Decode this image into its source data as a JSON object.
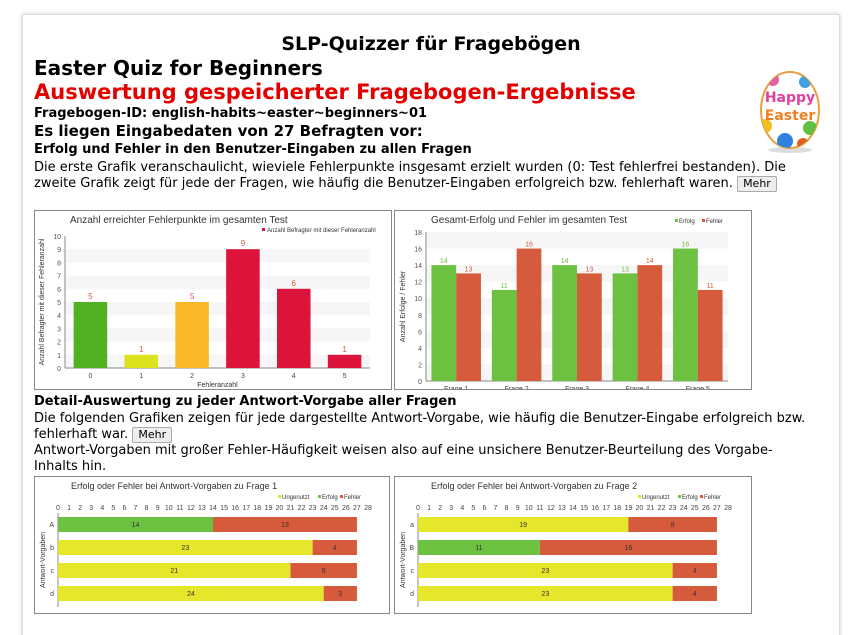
{
  "app_title": "SLP-Quizzer für Fragebögen",
  "quiz_title": "Easter Quiz for Beginners",
  "eval_title": "Auswertung gespeicherter Fragebogen-Ergebnisse",
  "questionnaire_id": "Fragebogen-ID: english-habits~easter~beginners~01",
  "respondents": "Es liegen Eingabedaten von 27 Befragten vor:",
  "section1": {
    "heading": "Erfolg und Fehler in den Benutzer-Eingaben zu allen Fragen",
    "text": "Die erste Grafik veranschaulicht, wieviele Fehlerpunkte insgesamt erzielt wurden (0: Test fehlerfrei bestanden). Die zweite Grafik zeigt für jede der Fragen, wie häufig die Benutzer-Eingaben erfolgreich bzw. fehlerhaft waren.",
    "more": "Mehr"
  },
  "section2": {
    "heading": "Detail-Auswertung zu jeder Antwort-Vorgabe aller Fragen",
    "text1": "Die folgenden Grafiken zeigen für jede dargestellte Antwort-Vorgabe, wie häufig die Benutzer-Eingabe erfolgreich bzw. fehlerhaft war.",
    "more": "Mehr",
    "text2": "Antwort-Vorgaben mit großer Fehler-Häufigkeit weisen also auf eine unsichere Benutzer-Beurteilung des Vorgabe-Inhalts hin."
  },
  "egg_image": {
    "text": "Happy Easter"
  },
  "colors": {
    "erfolg": "#6cc140",
    "fehler": "#d65a3c",
    "ungenutzt": "#e6e62a",
    "red": "#dc143c",
    "orange": "#fbb829",
    "lime": "#dde21e",
    "green": "#52b120"
  },
  "chart_data": [
    {
      "type": "bar",
      "title": "Anzahl erreichter Fehlerpunkte im gesamten Test",
      "xlabel": "Fehleranzahl",
      "ylabel": "Anzahl Befragter mit dieser Fehleranzahl",
      "legend": "Anzahl Befragter mit dieser Fehleranzahl",
      "legend_position": "top-right",
      "categories": [
        "0",
        "1",
        "2",
        "3",
        "4",
        "5"
      ],
      "values": [
        5,
        1,
        5,
        9,
        6,
        1
      ],
      "bar_colors": [
        "#52b120",
        "#dde21e",
        "#fbb829",
        "#dc143c",
        "#dc143c",
        "#dc143c"
      ],
      "ylim": [
        0,
        10
      ],
      "yticks": [
        0,
        1,
        2,
        3,
        4,
        5,
        6,
        7,
        8,
        9,
        10
      ]
    },
    {
      "type": "bar",
      "title": "Gesamt-Erfolg und Fehler im gesamten Test",
      "ylabel": "Anzahl Erfolge / Fehler",
      "legend_position": "top-right",
      "categories": [
        "Frage 1",
        "Frage 2",
        "Frage 3",
        "Frage 4",
        "Frage 5"
      ],
      "series": [
        {
          "name": "Erfolg",
          "values": [
            14,
            11,
            14,
            13,
            16
          ],
          "color": "#6cc140"
        },
        {
          "name": "Fehler",
          "values": [
            13,
            16,
            13,
            14,
            11
          ],
          "color": "#d65a3c"
        }
      ],
      "ylim": [
        0,
        18
      ],
      "yticks": [
        0,
        2,
        4,
        6,
        8,
        10,
        12,
        14,
        16,
        18
      ]
    },
    {
      "type": "bar",
      "orientation": "horizontal",
      "stacked": true,
      "title": "Erfolg oder Fehler bei Antwort-Vorgaben zu Frage 1",
      "ylabel": "Antwort-Vorgaben",
      "legend_position": "top-right",
      "legend": [
        "Ungenutzt",
        "Erfolg",
        "Fehler"
      ],
      "categories": [
        "A",
        "b",
        "c",
        "d"
      ],
      "xlim": [
        0,
        28
      ],
      "rows": [
        [
          {
            "s": "Erfolg",
            "v": 14
          },
          {
            "s": "Fehler",
            "v": 13
          }
        ],
        [
          {
            "s": "Ungenutzt",
            "v": 23
          },
          {
            "s": "Fehler",
            "v": 4
          }
        ],
        [
          {
            "s": "Ungenutzt",
            "v": 21
          },
          {
            "s": "Fehler",
            "v": 6
          }
        ],
        [
          {
            "s": "Ungenutzt",
            "v": 24
          },
          {
            "s": "Fehler",
            "v": 3
          }
        ]
      ]
    },
    {
      "type": "bar",
      "orientation": "horizontal",
      "stacked": true,
      "title": "Erfolg oder Fehler bei Antwort-Vorgaben zu Frage 2",
      "ylabel": "Antwort-Vorgaben",
      "legend_position": "top-right",
      "legend": [
        "Ungenutzt",
        "Erfolg",
        "Fehler"
      ],
      "categories": [
        "a",
        "B",
        "c",
        "d"
      ],
      "xlim": [
        0,
        28
      ],
      "rows": [
        [
          {
            "s": "Ungenutzt",
            "v": 19
          },
          {
            "s": "Fehler",
            "v": 8
          }
        ],
        [
          {
            "s": "Erfolg",
            "v": 11
          },
          {
            "s": "Fehler",
            "v": 16
          }
        ],
        [
          {
            "s": "Ungenutzt",
            "v": 23
          },
          {
            "s": "Fehler",
            "v": 4
          }
        ],
        [
          {
            "s": "Ungenutzt",
            "v": 23
          },
          {
            "s": "Fehler",
            "v": 4
          }
        ]
      ]
    }
  ]
}
